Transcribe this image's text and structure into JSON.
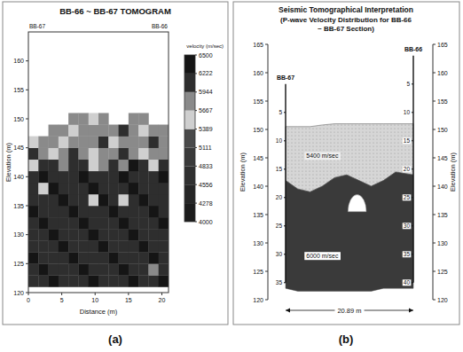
{
  "chart_data": [
    {
      "type": "heatmap",
      "title": "BB-66 ~ BB-67 TOMOGRAM",
      "panel_label": "(a)",
      "x_label": "Distance (m)",
      "y_label": "Elevation (m)",
      "boreholes": [
        "BB-67",
        "BB-66"
      ],
      "xlim": [
        0,
        21
      ],
      "ylim": [
        120,
        165
      ],
      "xticks": [
        0,
        5,
        10,
        15,
        20
      ],
      "yticks": [
        120,
        125,
        130,
        135,
        140,
        145,
        150,
        155,
        160
      ],
      "x_edges": [
        0,
        1.5,
        3,
        4.5,
        6,
        7.5,
        9,
        10.5,
        12,
        13.5,
        15,
        16.5,
        18,
        19.5,
        21
      ],
      "y_edges": [
        121,
        123,
        125,
        127,
        129,
        131,
        133,
        135,
        137,
        139,
        141,
        143,
        145,
        147,
        149,
        151
      ],
      "cells": [
        [
          6100,
          6200,
          6300,
          6200,
          6100,
          6200,
          6300,
          6200,
          6100,
          6200,
          6300,
          6200,
          6100,
          6300
        ],
        [
          6200,
          6300,
          6200,
          6100,
          6200,
          6300,
          6200,
          6100,
          6200,
          6300,
          6200,
          6100,
          5700,
          6200
        ],
        [
          6300,
          6200,
          6100,
          6200,
          6300,
          6200,
          6100,
          6200,
          6300,
          6200,
          6100,
          6200,
          6300,
          6200
        ],
        [
          6200,
          6100,
          6200,
          6300,
          6200,
          6100,
          6200,
          6300,
          6200,
          6100,
          6200,
          6300,
          6200,
          6100
        ],
        [
          6100,
          6200,
          6300,
          6200,
          6100,
          6200,
          6300,
          6200,
          6100,
          6200,
          6300,
          6200,
          6100,
          6200
        ],
        [
          6200,
          6300,
          6200,
          6100,
          6200,
          6300,
          6200,
          6100,
          6200,
          6300,
          6200,
          6100,
          6200,
          6300
        ],
        [
          6300,
          6200,
          6100,
          6200,
          6300,
          6200,
          6100,
          6200,
          6300,
          6200,
          6100,
          6200,
          6300,
          6200
        ],
        [
          6200,
          6100,
          6200,
          6300,
          6200,
          6100,
          5500,
          6300,
          6200,
          5500,
          6200,
          6300,
          6200,
          6100
        ],
        [
          6100,
          5500,
          6300,
          6200,
          6100,
          6200,
          6300,
          6200,
          6100,
          6200,
          6300,
          6200,
          6100,
          6200
        ],
        [
          6200,
          6300,
          6200,
          6100,
          6200,
          6300,
          6200,
          6100,
          6200,
          6300,
          6200,
          6100,
          6200,
          6300
        ],
        [
          5500,
          6100,
          6200,
          5800,
          6100,
          6200,
          5500,
          5700,
          6100,
          5800,
          6300,
          6200,
          5400,
          6100
        ],
        [
          6200,
          5800,
          5600,
          5700,
          6100,
          5800,
          5600,
          5900,
          5700,
          6200,
          5800,
          5600,
          5700,
          5900
        ],
        [
          5600,
          5800,
          5700,
          5500,
          5700,
          5900,
          5800,
          6100,
          5600,
          5700,
          5900,
          5800,
          6100,
          5700
        ],
        [
          null,
          null,
          5800,
          5700,
          5600,
          5800,
          5900,
          5700,
          5800,
          6100,
          5700,
          5600,
          5800,
          5700
        ],
        [
          null,
          null,
          null,
          null,
          5700,
          5800,
          5600,
          5900,
          null,
          null,
          5800,
          5700,
          null,
          null
        ]
      ],
      "colorbar": {
        "title": "velocity (m/sec)",
        "range": [
          4000,
          6500
        ],
        "ticks": [
          4000,
          4278,
          4556,
          4833,
          5111,
          5389,
          5667,
          5944,
          6222,
          6500
        ],
        "colors": [
          "#1c1c1c",
          "#262626",
          "#303030",
          "#3a3a3a",
          "#4a4a4a",
          "#cfcfcf",
          "#8a8a8a",
          "#2e2e2e",
          "#151515"
        ]
      }
    },
    {
      "type": "section",
      "title": "Seismic Tomographical Interpretation",
      "subtitle": "(P-wave Velocity Distribution for BB-66 ~ BB-67 Section)",
      "panel_label": "(b)",
      "y_label": "Elevation (m)",
      "xlim": [
        0,
        20.89
      ],
      "ylim": [
        120,
        165
      ],
      "yticks": [
        120,
        125,
        130,
        135,
        140,
        145,
        150,
        155,
        160,
        165
      ],
      "span": {
        "value": 20.89,
        "label": "20.89 m"
      },
      "boreholes": [
        {
          "name": "BB-67",
          "x": 0,
          "top": 158,
          "depth_ticks": [
            5,
            10,
            15,
            20,
            25,
            30,
            35
          ]
        },
        {
          "name": "BB-66",
          "x": 20.89,
          "top": 163,
          "depth_ticks": [
            5,
            10,
            15,
            20,
            25,
            30,
            35,
            40
          ]
        }
      ],
      "x": [
        0,
        2,
        4,
        6,
        8,
        10,
        12,
        14,
        16,
        18,
        20.89
      ],
      "layers": [
        {
          "label": "5400 m/sec",
          "color": "#d6d6d6",
          "top": [
            150.5,
            150.5,
            150.5,
            150.8,
            151,
            151,
            151,
            151,
            151,
            151,
            151
          ],
          "bottom": [
            141,
            139.5,
            139,
            140,
            141.5,
            142,
            141,
            140,
            141,
            142.5,
            142
          ]
        },
        {
          "label": "6000 m/sec",
          "color": "#3a3a3a",
          "top": [
            141,
            139.5,
            139,
            140,
            141.5,
            142,
            141,
            140,
            141,
            142.5,
            142
          ],
          "bottom": [
            122,
            121.5,
            121.5,
            121.5,
            121.5,
            121.5,
            121.5,
            121.5,
            122,
            122,
            122
          ]
        }
      ],
      "anomaly": {
        "x": 11.7,
        "y": 135.5,
        "width": 3,
        "height": 3,
        "color": "#ffffff"
      }
    }
  ]
}
